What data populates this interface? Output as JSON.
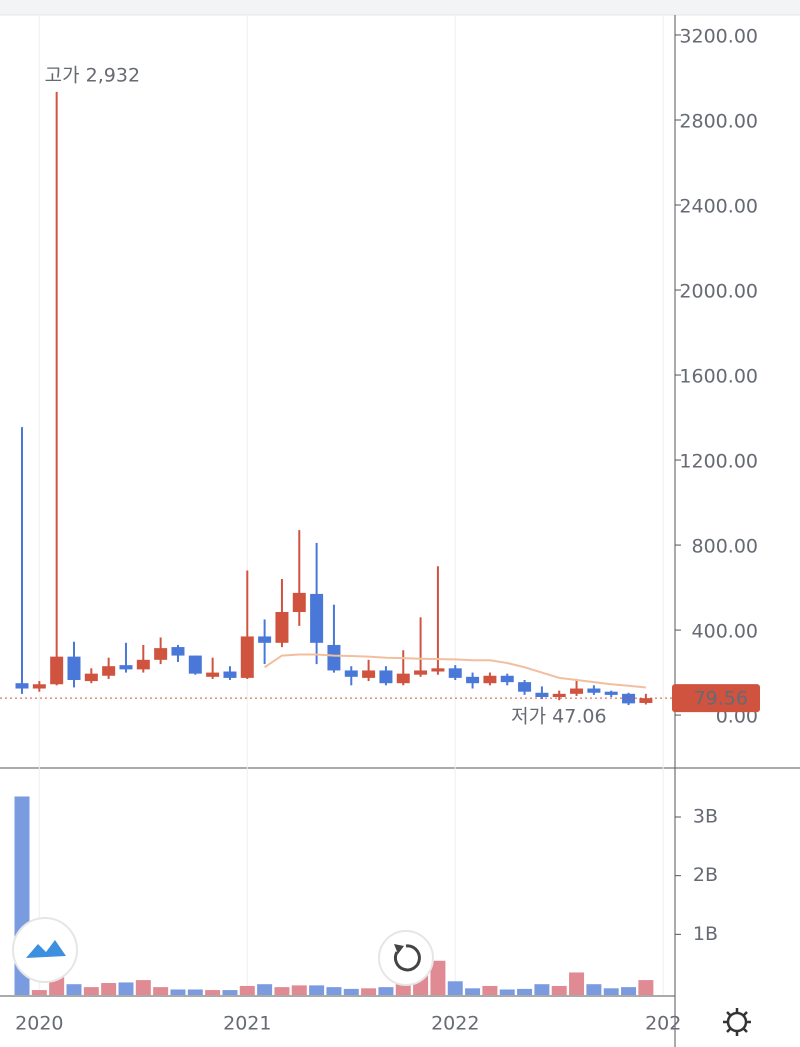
{
  "chart_data": {
    "type": "candlestick",
    "categories": [
      null,
      "2020",
      null,
      null,
      null,
      null,
      null,
      null,
      null,
      null,
      null,
      null,
      null,
      "2021",
      null,
      null,
      null,
      null,
      null,
      null,
      null,
      null,
      null,
      null,
      null,
      "2022",
      null,
      null,
      null,
      null,
      null,
      null,
      null,
      null,
      null,
      null,
      null,
      "202"
    ],
    "open": [
      150,
      125,
      145,
      275,
      160,
      185,
      235,
      215,
      260,
      320,
      280,
      180,
      205,
      175,
      370,
      340,
      485,
      570,
      330,
      210,
      175,
      210,
      150,
      190,
      205,
      220,
      180,
      150,
      185,
      155,
      105,
      85,
      100,
      125,
      110,
      100,
      57,
      null
    ],
    "high": [
      1355,
      160,
      2932,
      345,
      220,
      270,
      340,
      330,
      365,
      330,
      280,
      270,
      230,
      680,
      450,
      640,
      870,
      810,
      520,
      230,
      260,
      230,
      305,
      460,
      700,
      235,
      200,
      200,
      195,
      165,
      135,
      115,
      170,
      140,
      115,
      105,
      100,
      null
    ],
    "low": [
      100,
      110,
      140,
      130,
      150,
      170,
      200,
      200,
      240,
      250,
      190,
      170,
      165,
      170,
      240,
      320,
      420,
      240,
      200,
      140,
      160,
      140,
      140,
      180,
      190,
      165,
      125,
      140,
      140,
      95,
      75,
      70,
      90,
      95,
      85,
      47.06,
      50,
      null
    ],
    "close": [
      125,
      145,
      275,
      165,
      195,
      230,
      215,
      260,
      315,
      280,
      195,
      200,
      175,
      370,
      340,
      485,
      575,
      340,
      210,
      180,
      210,
      150,
      195,
      210,
      220,
      175,
      150,
      185,
      155,
      110,
      85,
      100,
      125,
      105,
      95,
      55,
      79.56,
      null
    ],
    "up_color": "#d0533f",
    "down_color": "#4a78d8",
    "ma": {
      "color": "#f2bf9e",
      "values": [
        null,
        null,
        null,
        null,
        null,
        null,
        null,
        null,
        null,
        null,
        null,
        null,
        null,
        null,
        225,
        280,
        285,
        285,
        280,
        278,
        275,
        270,
        268,
        265,
        263,
        262,
        258,
        258,
        245,
        225,
        200,
        175,
        165,
        155,
        145,
        138,
        130,
        null
      ]
    },
    "ylim": [
      -249,
      3294
    ],
    "yticks": [
      {
        "value": 0,
        "label": "0.00"
      },
      {
        "value": 400,
        "label": "400.00"
      },
      {
        "value": 800,
        "label": "800.00"
      },
      {
        "value": 1200,
        "label": "1200.00"
      },
      {
        "value": 1600,
        "label": "1600.00"
      },
      {
        "value": 2000,
        "label": "2000.00"
      },
      {
        "value": 2400,
        "label": "2400.00"
      },
      {
        "value": 2800,
        "label": "2800.00"
      },
      {
        "value": 3200,
        "label": "3200.00"
      }
    ],
    "annotations": [
      "고가 2,932",
      "저가 47.06"
    ],
    "last_price_label": "79.56",
    "volume": {
      "up_color": "#e08a94",
      "down_color": "#7b9be0",
      "values": [
        3350000000,
        50000000,
        300000000,
        150000000,
        100000000,
        170000000,
        180000000,
        220000000,
        100000000,
        60000000,
        60000000,
        50000000,
        50000000,
        120000000,
        150000000,
        100000000,
        130000000,
        130000000,
        100000000,
        70000000,
        80000000,
        100000000,
        200000000,
        400000000,
        550000000,
        200000000,
        80000000,
        120000000,
        60000000,
        70000000,
        150000000,
        120000000,
        350000000,
        150000000,
        80000000,
        100000000,
        220000000,
        null
      ],
      "ylim": [
        0,
        3750000000
      ],
      "yticks": [
        {
          "value": 1000000000,
          "label": "1B"
        },
        {
          "value": 2000000000,
          "label": "2B"
        },
        {
          "value": 3000000000,
          "label": "3B"
        }
      ]
    }
  }
}
